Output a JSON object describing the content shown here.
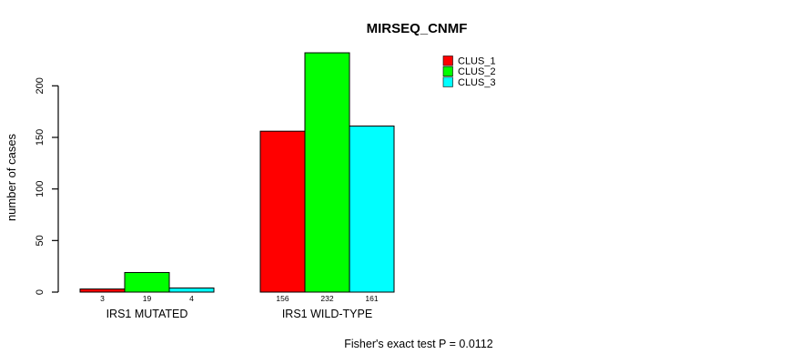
{
  "window": {
    "background": "#FFFFFF",
    "text_color": "#000000"
  },
  "chart_data": {
    "type": "bar",
    "title": "MIRSEQ_CNMF",
    "ylabel": "number of cases",
    "xlabel": "",
    "categories": [
      "IRS1 MUTATED",
      "IRS1 WILD-TYPE"
    ],
    "series": [
      {
        "name": "CLUS_1",
        "color": "#FF0000",
        "values": [
          3,
          156
        ]
      },
      {
        "name": "CLUS_2",
        "color": "#00FF00",
        "values": [
          19,
          232
        ]
      },
      {
        "name": "CLUS_3",
        "color": "#00FFFF",
        "values": [
          4,
          161
        ]
      }
    ],
    "bar_value_labels": [
      [
        "3",
        "19",
        "4"
      ],
      [
        "156",
        "232",
        "161"
      ]
    ],
    "yticks": [
      0,
      50,
      100,
      150,
      200
    ],
    "ylim": [
      0,
      240
    ],
    "grid": false,
    "legend_position": "top-right",
    "axis_color": "#000000",
    "bar_border_color": "#000000",
    "annotation": "Fisher's exact test P = 0.0112"
  }
}
